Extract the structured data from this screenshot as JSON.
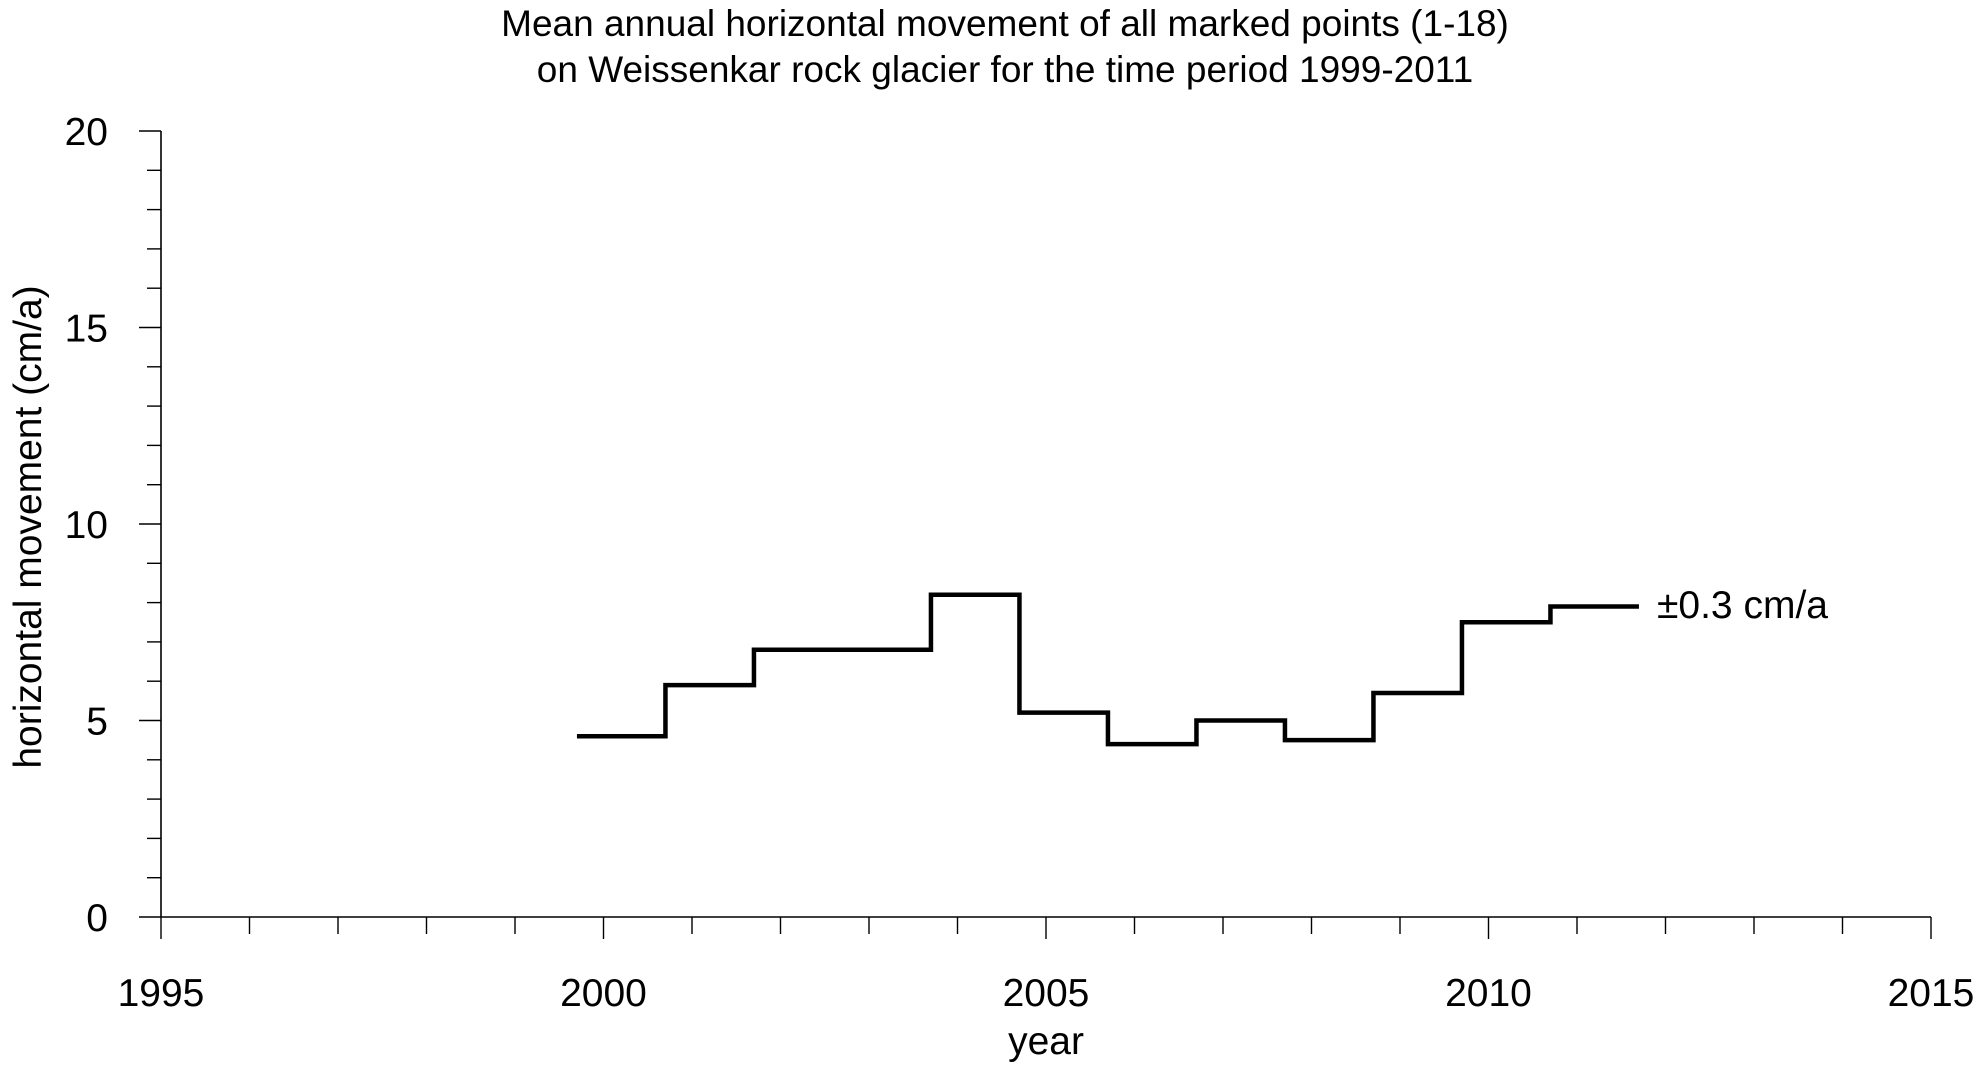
{
  "chart_data": {
    "type": "line",
    "step": true,
    "title": [
      "Mean annual horizontal movement of all marked points (1-18)",
      "on Weissenkar rock glacier for the time period 1999-2011"
    ],
    "xlabel": "year",
    "ylabel": "horizontal movement (cm/a)",
    "xlim": [
      1995,
      2015
    ],
    "ylim": [
      0,
      20
    ],
    "x_ticks": [
      "1995",
      "2000",
      "2005",
      "2010",
      "2015"
    ],
    "y_ticks": [
      "0",
      "5",
      "10",
      "15",
      "20"
    ],
    "x_minor_step": 1,
    "y_minor_step": 1,
    "grid": false,
    "color": "#000000",
    "series": [
      {
        "segments": [
          {
            "x_start": 1999.7,
            "x_end": 2000.7,
            "y": 4.6
          },
          {
            "x_start": 2000.7,
            "x_end": 2001.7,
            "y": 5.9
          },
          {
            "x_start": 2001.7,
            "x_end": 2003.7,
            "y": 6.8
          },
          {
            "x_start": 2003.7,
            "x_end": 2004.7,
            "y": 8.2
          },
          {
            "x_start": 2004.7,
            "x_end": 2005.7,
            "y": 5.2
          },
          {
            "x_start": 2005.7,
            "x_end": 2006.7,
            "y": 4.4
          },
          {
            "x_start": 2006.7,
            "x_end": 2007.7,
            "y": 5.0
          },
          {
            "x_start": 2007.7,
            "x_end": 2008.7,
            "y": 4.5
          },
          {
            "x_start": 2008.7,
            "x_end": 2009.7,
            "y": 5.7
          },
          {
            "x_start": 2009.7,
            "x_end": 2010.7,
            "y": 7.5
          },
          {
            "x_start": 2010.7,
            "x_end": 2011.7,
            "y": 7.9
          }
        ]
      }
    ],
    "annotation": "±0.3 cm/a"
  }
}
